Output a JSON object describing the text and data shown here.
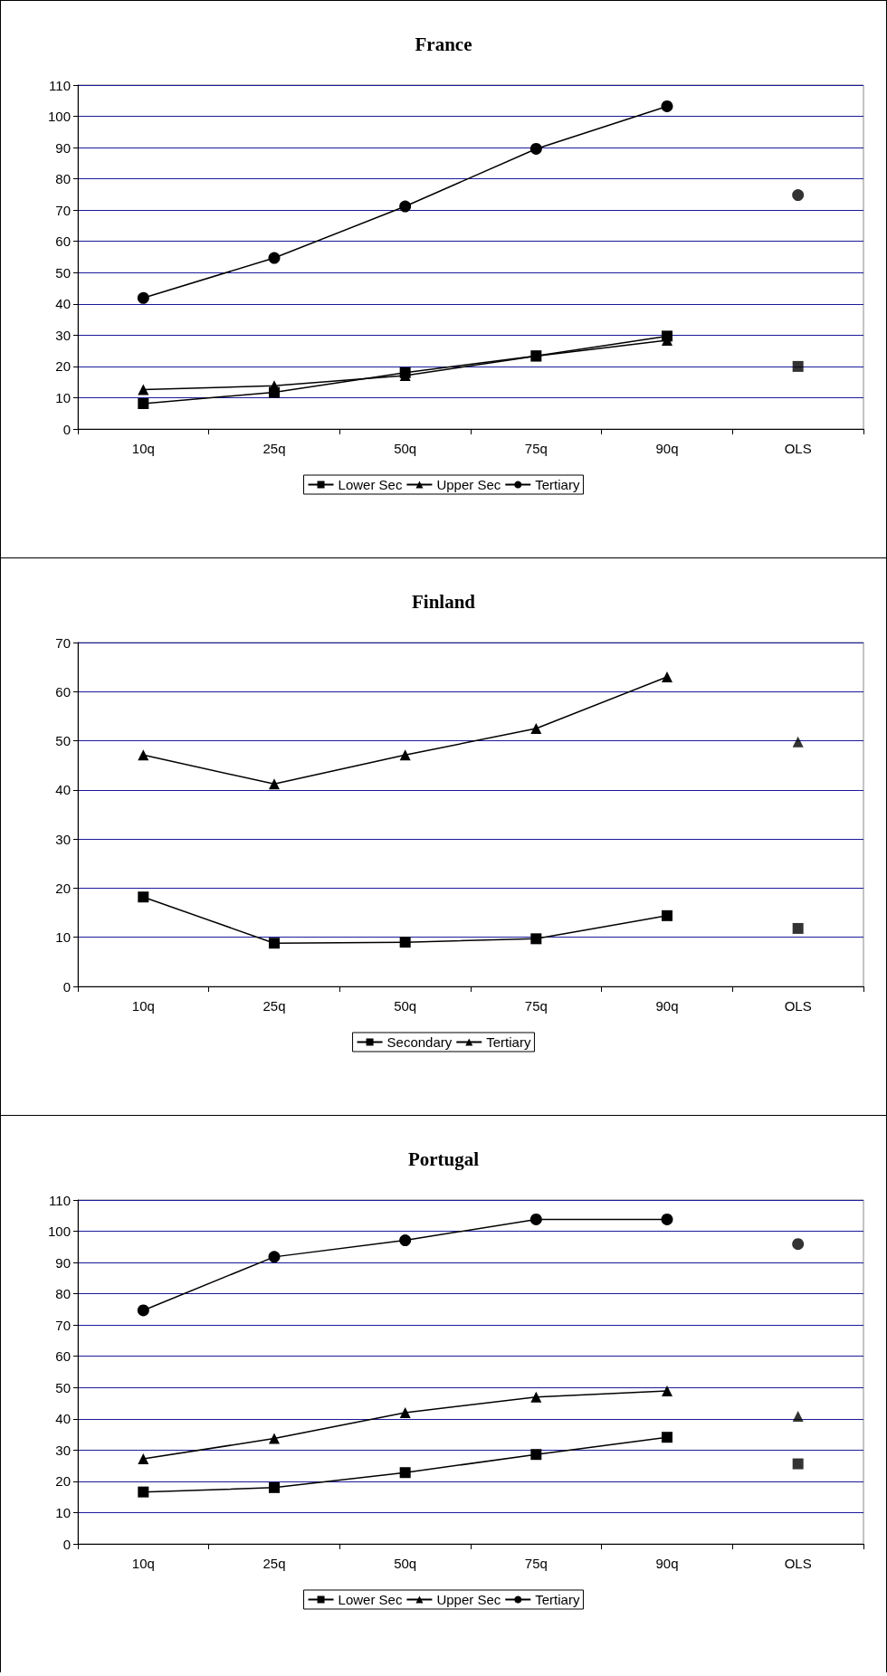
{
  "chart_data": [
    {
      "type": "line",
      "title": "France",
      "categories": [
        "10q",
        "25q",
        "50q",
        "75q",
        "90q",
        "OLS"
      ],
      "ylim": [
        0,
        110
      ],
      "yticks": [
        0,
        10,
        20,
        30,
        40,
        50,
        60,
        70,
        80,
        90,
        100,
        110
      ],
      "grid": "y",
      "legend": "bottom",
      "line_style": "solid",
      "series": [
        {
          "name": "Lower Sec",
          "color": "#000000",
          "marker": "square",
          "values": [
            8.1,
            11.7,
            18,
            23.4,
            29.7,
            null
          ]
        },
        {
          "name": "Upper Sec",
          "color": "#000000",
          "marker": "triangle",
          "values": [
            12.6,
            13.8,
            17.1,
            23.3,
            28.4,
            null
          ]
        },
        {
          "name": "Tertiary",
          "color": "#000000",
          "marker": "circle",
          "values": [
            41.9,
            54.7,
            71.2,
            89.6,
            103.2,
            null
          ]
        },
        {
          "type": "scatter",
          "color": "#000000",
          "marker": "square",
          "x": [
            "OLS"
          ],
          "values": [
            20
          ]
        },
        {
          "type": "scatter",
          "color": "#000000",
          "marker": "circle",
          "x": [
            "OLS"
          ],
          "values": [
            74.8
          ]
        }
      ]
    },
    {
      "type": "line",
      "title": "Finland",
      "categories": [
        "10q",
        "25q",
        "50q",
        "75q",
        "90q",
        "OLS"
      ],
      "ylim": [
        0,
        70
      ],
      "yticks": [
        0,
        10,
        20,
        30,
        40,
        50,
        60,
        70
      ],
      "grid": "y",
      "legend": "bottom",
      "line_style": "solid",
      "series": [
        {
          "name": "Secondary",
          "color": "#000000",
          "marker": "square",
          "values": [
            18.2,
            8.8,
            9.0,
            9.7,
            14.4,
            null
          ]
        },
        {
          "name": "Tertiary",
          "color": "#000000",
          "marker": "triangle",
          "values": [
            47.1,
            41.2,
            47.1,
            52.5,
            63,
            null
          ]
        },
        {
          "type": "scatter",
          "color": "#000000",
          "marker": "square",
          "x": [
            "OLS"
          ],
          "values": [
            11.8
          ]
        },
        {
          "type": "scatter",
          "color": "#000000",
          "marker": "triangle",
          "x": [
            "OLS"
          ],
          "values": [
            49.8
          ]
        }
      ]
    },
    {
      "type": "line",
      "title": "Portugal",
      "categories": [
        "10q",
        "25q",
        "50q",
        "75q",
        "90q",
        "OLS"
      ],
      "ylim": [
        0,
        110
      ],
      "yticks": [
        0,
        10,
        20,
        30,
        40,
        50,
        60,
        70,
        80,
        90,
        100,
        110
      ],
      "grid": "y",
      "legend": "bottom",
      "line_style": "solid",
      "series": [
        {
          "name": "Lower Sec",
          "color": "#000000",
          "marker": "square",
          "values": [
            16.6,
            18,
            22.8,
            28.6,
            34.1,
            null
          ]
        },
        {
          "name": "Upper Sec",
          "color": "#000000",
          "marker": "triangle",
          "values": [
            27.2,
            33.7,
            42,
            47,
            48.9,
            null
          ]
        },
        {
          "name": "Tertiary",
          "color": "#000000",
          "marker": "circle",
          "values": [
            74.7,
            91.8,
            97.1,
            103.8,
            103.8,
            null
          ]
        },
        {
          "type": "scatter",
          "color": "#000000",
          "marker": "square",
          "x": [
            "OLS"
          ],
          "values": [
            25.6
          ]
        },
        {
          "type": "scatter",
          "color": "#000000",
          "marker": "triangle",
          "x": [
            "OLS"
          ],
          "values": [
            40.8
          ]
        },
        {
          "type": "scatter",
          "color": "#000000",
          "marker": "circle",
          "x": [
            "OLS"
          ],
          "values": [
            95.9
          ]
        }
      ]
    }
  ]
}
